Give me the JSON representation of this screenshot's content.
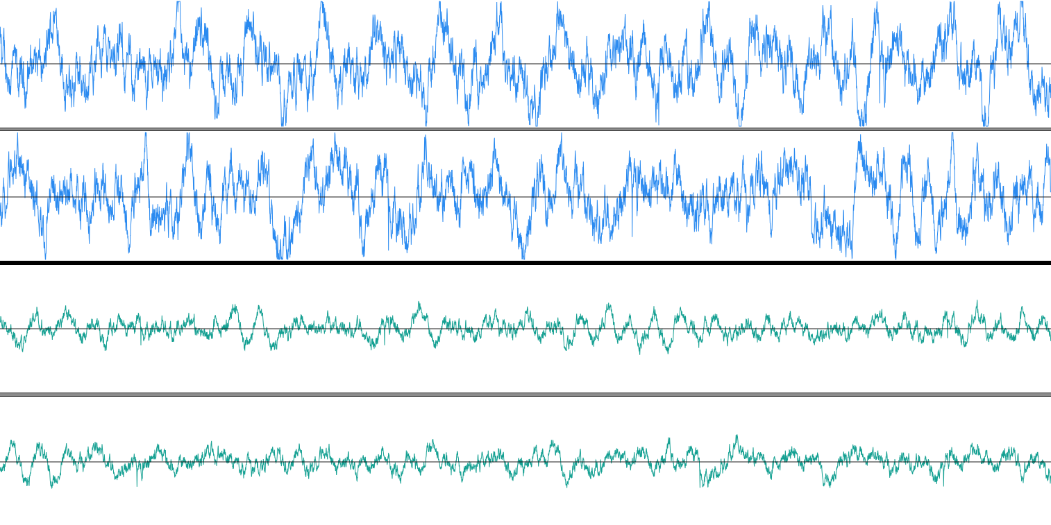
{
  "tracks": [
    {
      "color": "#2a8af0",
      "channels": 2
    },
    {
      "color": "#14a092",
      "channels": 2
    }
  ]
}
